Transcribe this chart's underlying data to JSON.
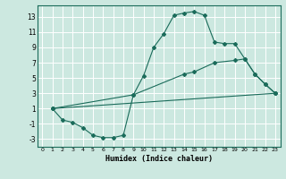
{
  "xlabel": "Humidex (Indice chaleur)",
  "bg_color": "#cce8e0",
  "grid_color": "#ffffff",
  "line_color": "#1a6b5a",
  "xlim": [
    -0.5,
    23.5
  ],
  "ylim": [
    -4,
    14.5
  ],
  "xticks": [
    0,
    1,
    2,
    3,
    4,
    5,
    6,
    7,
    8,
    9,
    10,
    11,
    12,
    13,
    14,
    15,
    16,
    17,
    18,
    19,
    20,
    21,
    22,
    23
  ],
  "yticks": [
    -3,
    -1,
    1,
    3,
    5,
    7,
    9,
    11,
    13
  ],
  "curve_x": [
    1,
    2,
    3,
    4,
    5,
    6,
    7,
    8,
    9,
    10,
    11,
    12,
    13,
    14,
    15,
    16,
    17,
    18,
    19,
    20,
    21,
    22,
    23
  ],
  "curve_y": [
    1,
    -0.5,
    -0.8,
    -1.5,
    -2.5,
    -2.8,
    -2.8,
    -2.5,
    2.8,
    5.3,
    9.0,
    10.8,
    13.2,
    13.5,
    13.7,
    13.2,
    9.7,
    9.5,
    9.5,
    7.5,
    5.5,
    4.2,
    3.0
  ],
  "line2_x": [
    1,
    9,
    14,
    15,
    17,
    19,
    20,
    21,
    22,
    23
  ],
  "line2_y": [
    1,
    2.8,
    5.5,
    5.8,
    7.0,
    7.3,
    7.5,
    5.5,
    4.2,
    3.0
  ],
  "line3_x": [
    1,
    23
  ],
  "line3_y": [
    1,
    3.0
  ]
}
